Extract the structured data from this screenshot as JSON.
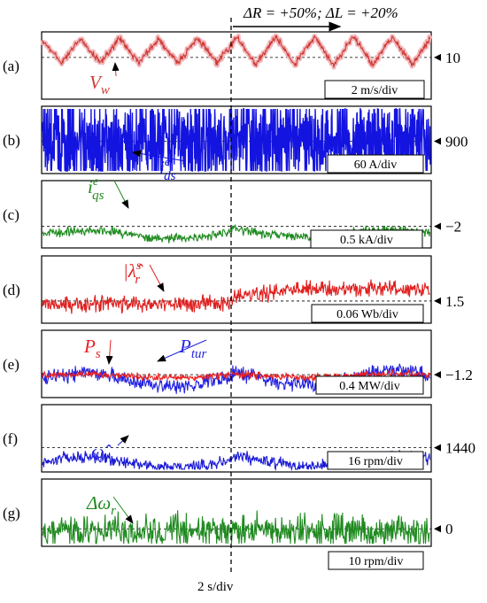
{
  "figure": {
    "top_annotation": "ΔR = +50%; ΔL = +20%",
    "time_scale": "2 s/div"
  },
  "chart_data": [
    {
      "type": "line",
      "panel": "(a)",
      "series": [
        {
          "name": "V",
          "subscript": "w",
          "color": "#cc3b33",
          "glow": "#f2b8bd",
          "style": "triangle",
          "base": -0.5,
          "amp": 1.6,
          "noise": 0.18,
          "period": 3.2
        }
      ],
      "reference_value": "10",
      "scale": "2 m/s/div"
    },
    {
      "type": "line",
      "panel": "(b)",
      "series": [
        {
          "name": "i",
          "superscript": "e",
          "subscript": "ds",
          "color": "#1414e0",
          "style": "dense",
          "base": 0,
          "amp": 0,
          "noise": 1.9
        }
      ],
      "reference_value": "900",
      "scale": "60 A/div"
    },
    {
      "type": "line",
      "panel": "(c)",
      "series": [
        {
          "name": "i",
          "superscript": "e",
          "subscript": "qs",
          "color": "#1e8a1e",
          "style": "wave",
          "base": 0.6,
          "amp": 0.6,
          "noise": 0.25
        }
      ],
      "reference_value": "−2",
      "scale": "0.5 kA/div"
    },
    {
      "type": "line",
      "panel": "(d)",
      "series": [
        {
          "name": "|λ̂",
          "superscript": "s",
          "subscript": "r",
          "color": "#e02020",
          "style": "step",
          "base": 0.2,
          "amp": 1.1,
          "noise": 0.45
        }
      ],
      "reference_value": "1.5",
      "scale": "0.06 Wb/div"
    },
    {
      "type": "line",
      "panel": "(e)",
      "series": [
        {
          "name": "P",
          "subscript": "tur",
          "color": "#2424e0",
          "style": "wave",
          "base": 0.4,
          "amp": 1.1,
          "noise": 0.45
        },
        {
          "name": "P",
          "subscript": "s",
          "color": "#e82020",
          "style": "wave",
          "base": 0.1,
          "amp": 0.25,
          "noise": 0.2
        }
      ],
      "reference_value": "−1.2",
      "scale": "0.4 MW/div"
    },
    {
      "type": "line",
      "panel": "(f)",
      "series": [
        {
          "name": "ω̂",
          "subscript": "r",
          "color": "#1c1cd6",
          "style": "wave",
          "base": 1.1,
          "amp": 0.8,
          "noise": 0.35
        }
      ],
      "reference_value": "1440",
      "scale": "16 rpm/div"
    },
    {
      "type": "line",
      "panel": "(g)",
      "series": [
        {
          "name": "Δω",
          "subscript": "r",
          "color": "#1f8a1f",
          "style": "noise",
          "base": 0.2,
          "amp": 0,
          "noise": 0.95
        }
      ],
      "reference_value": "0",
      "scale": "10 rpm/div"
    }
  ]
}
